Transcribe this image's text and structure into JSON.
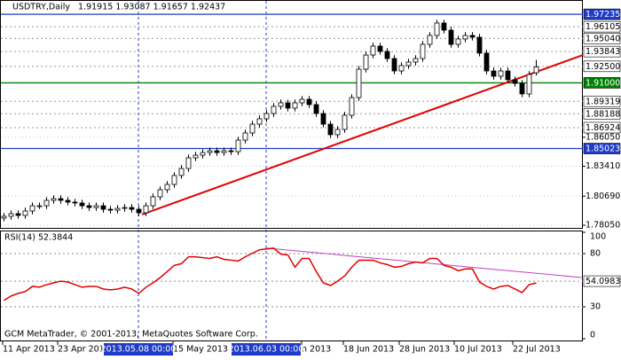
{
  "chart_data": [
    {
      "type": "candlestick",
      "title": "USDTRY,Daily",
      "quote": "1.91915 1.93087 1.91657 1.92437",
      "open": [
        1.787,
        1.7886,
        1.791,
        1.7894,
        1.7934,
        1.7982,
        1.7982,
        1.8031,
        1.8047,
        1.8031,
        1.8015,
        1.8007,
        1.7982,
        1.7966,
        1.7982,
        1.795,
        1.7942,
        1.7958,
        1.7966,
        1.795,
        1.7918,
        1.7982,
        1.8063,
        1.8128,
        1.8176,
        1.8257,
        1.8321,
        1.8418,
        1.8442,
        1.8466,
        1.8482,
        1.8466,
        1.8482,
        1.8474,
        1.8579,
        1.8644,
        1.8724,
        1.8773,
        1.8821,
        1.8886,
        1.8918,
        1.887,
        1.8918,
        1.895,
        1.8902,
        1.8821,
        1.8724,
        1.8628,
        1.8676,
        1.8805,
        1.8966,
        1.9224,
        1.9353,
        1.9434,
        1.9386,
        1.9321,
        1.9208,
        1.9257,
        1.9289,
        1.9321,
        1.945,
        1.9531,
        1.9644,
        1.9579,
        1.945,
        1.9499,
        1.9531,
        1.9515,
        1.937,
        1.9208,
        1.916,
        1.9208,
        1.9128,
        1.9095,
        1.8999,
        1.91915
      ],
      "high": [
        1.7916,
        1.794,
        1.794,
        1.7964,
        1.8012,
        1.8012,
        1.8061,
        1.8077,
        1.8077,
        1.8061,
        1.8045,
        1.8037,
        1.8012,
        1.8012,
        1.8012,
        1.798,
        1.7988,
        1.7996,
        1.7996,
        1.798,
        1.8012,
        1.8093,
        1.8158,
        1.8206,
        1.8287,
        1.8351,
        1.8448,
        1.8472,
        1.8496,
        1.8512,
        1.8512,
        1.8512,
        1.8512,
        1.8609,
        1.8674,
        1.8754,
        1.8803,
        1.8851,
        1.8916,
        1.8948,
        1.8948,
        1.8948,
        1.898,
        1.898,
        1.8932,
        1.8851,
        1.8754,
        1.8706,
        1.8835,
        1.8996,
        1.9254,
        1.9383,
        1.9464,
        1.9464,
        1.9416,
        1.9351,
        1.9287,
        1.9319,
        1.9351,
        1.948,
        1.9561,
        1.9674,
        1.9674,
        1.9609,
        1.9529,
        1.9561,
        1.9561,
        1.9545,
        1.94,
        1.9238,
        1.9238,
        1.9238,
        1.9158,
        1.9125,
        1.9206,
        1.93087
      ],
      "low": [
        1.784,
        1.7856,
        1.7864,
        1.7864,
        1.7904,
        1.7952,
        1.7952,
        1.8001,
        1.8001,
        1.7985,
        1.7977,
        1.7952,
        1.7936,
        1.7936,
        1.792,
        1.7912,
        1.7912,
        1.7928,
        1.792,
        1.7888,
        1.7888,
        1.7952,
        1.8033,
        1.8098,
        1.8146,
        1.8227,
        1.8291,
        1.8388,
        1.8412,
        1.8436,
        1.8436,
        1.8436,
        1.8444,
        1.8444,
        1.8549,
        1.8614,
        1.8694,
        1.8743,
        1.8791,
        1.8856,
        1.884,
        1.884,
        1.8888,
        1.8872,
        1.8791,
        1.8694,
        1.8598,
        1.8598,
        1.8646,
        1.8775,
        1.8936,
        1.9194,
        1.9323,
        1.9356,
        1.9291,
        1.9178,
        1.9178,
        1.9227,
        1.9259,
        1.9291,
        1.942,
        1.9501,
        1.9549,
        1.942,
        1.942,
        1.9469,
        1.9485,
        1.934,
        1.9178,
        1.913,
        1.913,
        1.9098,
        1.9065,
        1.8969,
        1.8969,
        1.91657
      ],
      "close": [
        1.7886,
        1.791,
        1.7894,
        1.7934,
        1.7982,
        1.7982,
        1.8031,
        1.8047,
        1.8031,
        1.8015,
        1.8007,
        1.7982,
        1.7966,
        1.7982,
        1.795,
        1.7942,
        1.7958,
        1.7966,
        1.795,
        1.7918,
        1.7982,
        1.8063,
        1.8128,
        1.8176,
        1.8257,
        1.8321,
        1.8418,
        1.8442,
        1.8466,
        1.8482,
        1.8466,
        1.8482,
        1.8474,
        1.8579,
        1.8644,
        1.8724,
        1.8773,
        1.8821,
        1.8886,
        1.8918,
        1.887,
        1.8918,
        1.895,
        1.8902,
        1.8821,
        1.8724,
        1.8628,
        1.8676,
        1.8805,
        1.8966,
        1.9224,
        1.9353,
        1.9434,
        1.9386,
        1.9321,
        1.9208,
        1.9257,
        1.9289,
        1.9321,
        1.945,
        1.9531,
        1.9644,
        1.9579,
        1.945,
        1.9499,
        1.9531,
        1.9515,
        1.937,
        1.9208,
        1.916,
        1.9208,
        1.9128,
        1.9095,
        1.8999,
        1.9176,
        1.92437
      ],
      "bull_color": "#ffffff",
      "bear_color": "#000000",
      "ylim": [
        1.77727,
        1.98534
      ],
      "yticks": [
        {
          "value": 1.7805,
          "label": "1.78050"
        },
        {
          "value": 1.8069,
          "label": "1.80690"
        },
        {
          "value": 1.8341,
          "label": "1.83410"
        },
        {
          "value": 1.8605,
          "label": "1.86050"
        }
      ],
      "levels": [
        {
          "value": 1.97235,
          "label": "1.97235",
          "color": "#1e3cc8",
          "style": "solid"
        },
        {
          "value": 1.96105,
          "label": "1.96105",
          "color": "#9a9a9a",
          "style": "dashed"
        },
        {
          "value": 1.9504,
          "label": "1.95040",
          "color": "#9a9a9a",
          "style": "dashed"
        },
        {
          "value": 1.93843,
          "label": "1.93843",
          "color": "#9a9a9a",
          "style": "dashed"
        },
        {
          "value": 1.925,
          "label": "1.92500",
          "color": "#9a9a9a",
          "style": "dashed"
        },
        {
          "value": 1.91,
          "label": "1.91000",
          "color": "#008000",
          "style": "solid"
        },
        {
          "value": 1.89319,
          "label": "1.89319",
          "color": "#9a9a9a",
          "style": "dashed"
        },
        {
          "value": 1.88188,
          "label": "1.88188",
          "color": "#9a9a9a",
          "style": "dashed"
        },
        {
          "value": 1.86924,
          "label": "1.86924",
          "color": "#9a9a9a",
          "style": "dashed"
        },
        {
          "value": 1.85023,
          "label": "1.85023",
          "color": "#1e3cc8",
          "style": "solid"
        }
      ],
      "trend_line": {
        "start": 1.7902,
        "end": 1.9353,
        "color": "#e00000"
      },
      "vlines": [
        {
          "label": "2013.05.08 00:00",
          "color": "#1e3cc8"
        },
        {
          "label": "2013.06.03 00:00",
          "color": "#1e3cc8"
        }
      ],
      "x_labels": [
        "11 Apr 2013",
        "23 Apr 2013",
        "15 May 2013",
        "n 2013",
        "18 Jun 2013",
        "28 Jun 2013",
        "10 Jul 2013",
        "22 Jul 2013"
      ]
    },
    {
      "type": "line",
      "title": "RSI(14) 52.3844",
      "color": "#e00000",
      "values": [
        36.1,
        40.2,
        42.6,
        44.3,
        49.2,
        48.4,
        50.8,
        52.5,
        54.1,
        53.3,
        50.8,
        48.4,
        49.2,
        49.2,
        46.7,
        45.9,
        46.7,
        48.4,
        46.7,
        42.6,
        48.4,
        52.5,
        57.4,
        63.1,
        68.9,
        70.5,
        77.0,
        77.0,
        76.2,
        75.4,
        77.0,
        74.6,
        73.8,
        73.0,
        77.0,
        80.3,
        83.6,
        84.4,
        85.2,
        79.5,
        78.7,
        67.2,
        75.4,
        75.4,
        63.1,
        52.5,
        50.0,
        54.1,
        59.0,
        67.2,
        73.8,
        73.8,
        73.8,
        71.3,
        69.7,
        67.2,
        68.0,
        70.5,
        72.1,
        71.3,
        75.4,
        75.4,
        68.9,
        67.2,
        63.9,
        65.6,
        65.6,
        53.3,
        49.2,
        46.7,
        49.2,
        50.0,
        46.7,
        43.4,
        50.8,
        52.3844
      ],
      "ylim": [
        0,
        100
      ],
      "yticks": [
        100,
        80,
        30,
        0
      ],
      "levels": [
        80,
        30
      ],
      "marker": {
        "value": 54.09836,
        "label": "54.09836"
      },
      "trend_line": {
        "start": 85.2,
        "end": 57.4,
        "color": "#c040c0"
      },
      "footer": "GCM MetaTrader, © 2001-2013, MetaQuotes Software Corp."
    }
  ]
}
